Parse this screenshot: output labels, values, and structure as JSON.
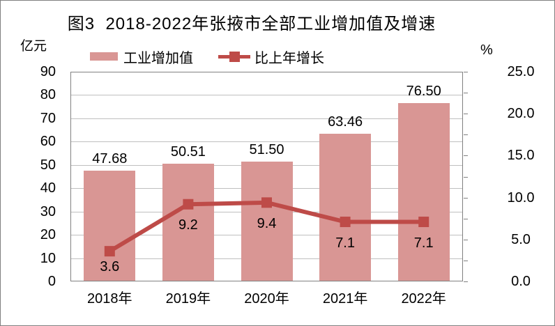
{
  "page": {
    "background": "#ffffff",
    "border_color": "#7f7f7f"
  },
  "chart_data": {
    "type": "combo",
    "title": "图3  2018-2022年张掖市全部工业增加值及增速",
    "categories": [
      "2018年",
      "2019年",
      "2020年",
      "2021年",
      "2022年"
    ],
    "series": [
      {
        "name": "工业增加值",
        "type": "bar",
        "axis": "left",
        "color": "#D99694",
        "values": [
          47.68,
          50.51,
          51.5,
          63.46,
          76.5
        ],
        "data_labels": [
          "47.68",
          "50.51",
          "51.50",
          "63.46",
          "76.50"
        ]
      },
      {
        "name": "比上年增长",
        "type": "line",
        "axis": "right",
        "color": "#BE4B48",
        "values": [
          3.6,
          9.2,
          9.4,
          7.1,
          7.1
        ],
        "data_labels": [
          "3.6",
          "9.2",
          "9.4",
          "7.1",
          "7.1"
        ]
      }
    ],
    "left_axis": {
      "unit_label": "亿元",
      "min": 0,
      "max": 90,
      "major_step": 10,
      "tick_labels": [
        "0",
        "10",
        "20",
        "30",
        "40",
        "50",
        "60",
        "70",
        "80",
        "90"
      ]
    },
    "right_axis": {
      "unit_label": "%",
      "min": 0,
      "max": 25,
      "major_step": 5,
      "minor_step": 2.5,
      "tick_labels": [
        "0.0",
        "5.0",
        "10.0",
        "15.0",
        "20.0",
        "25.0"
      ]
    },
    "legend": {
      "position": "top",
      "entries": [
        "工业增加值",
        "比上年增长"
      ]
    },
    "grid": true,
    "colors": {
      "bar": "#D99694",
      "line": "#BE4B48",
      "gridline": "#BFBFBF",
      "axis": "#808080",
      "text": "#000000"
    }
  }
}
